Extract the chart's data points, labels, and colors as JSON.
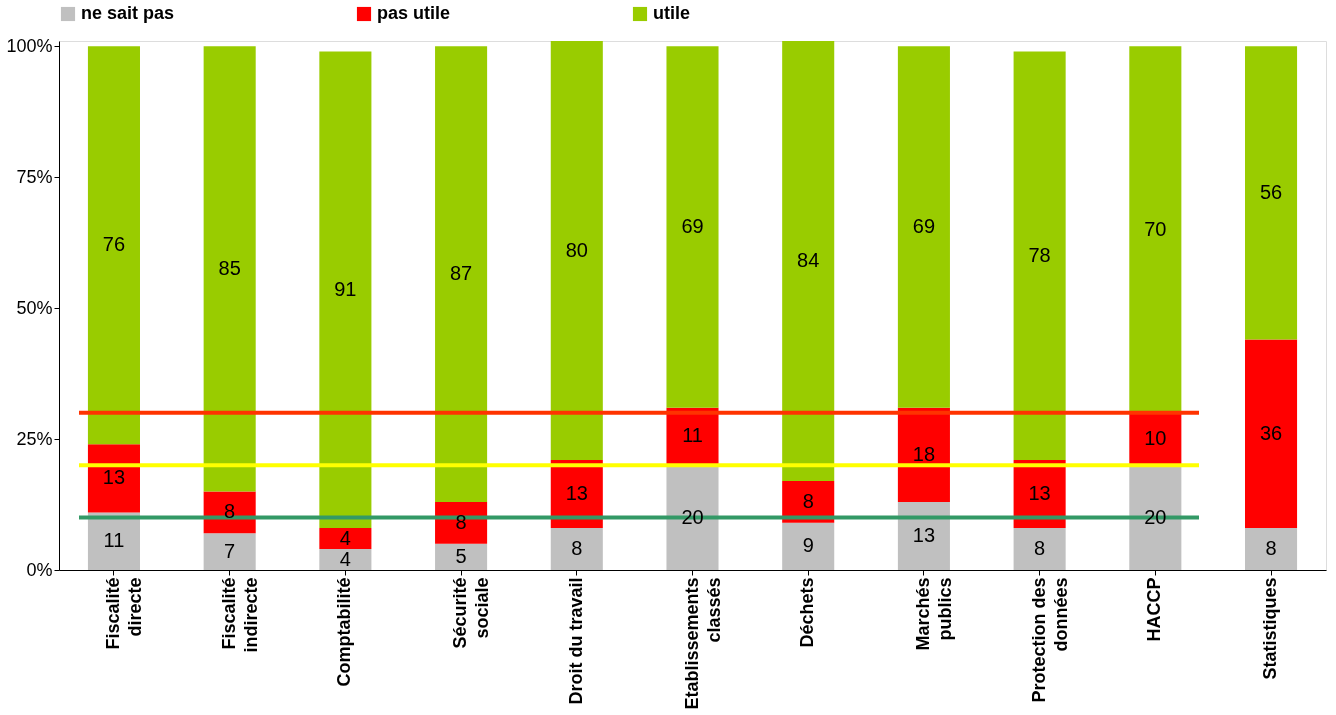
{
  "chart_data": {
    "type": "bar",
    "stacked": true,
    "data_labels": true,
    "legend": "top",
    "grid": false,
    "categories": [
      "Fiscalité\ndirecte",
      "Fiscalité\nindirecte",
      "Comptabilité",
      "Sécurité\nsociale",
      "Droit du travail",
      "Etablissements\nclassés",
      "Déchets",
      "Marchés\npublics",
      "Protection des\ndonnées",
      "HACCP",
      "Statistiques"
    ],
    "series": [
      {
        "name": "ne sait pas",
        "color": "#c0c0c0",
        "values": [
          11,
          7,
          4,
          5,
          8,
          20,
          9,
          13,
          8,
          20,
          8
        ]
      },
      {
        "name": "pas utile",
        "color": "#ff0000",
        "values": [
          13,
          8,
          4,
          8,
          13,
          11,
          8,
          18,
          13,
          10,
          36
        ]
      },
      {
        "name": "utile",
        "color": "#99cc00",
        "values": [
          76,
          85,
          91,
          87,
          80,
          69,
          84,
          69,
          78,
          70,
          56
        ]
      }
    ],
    "ylim": [
      0,
      101
    ],
    "yticks": [
      {
        "value": 0,
        "label": "0%"
      },
      {
        "value": 25,
        "label": "25%"
      },
      {
        "value": 50,
        "label": "50%"
      },
      {
        "value": 75,
        "label": "75%"
      },
      {
        "value": 100,
        "label": "100%"
      }
    ],
    "ref_lines": [
      {
        "axis": "y",
        "value": 30,
        "label": null,
        "color": "#ff3300"
      },
      {
        "axis": "y",
        "value": 20,
        "label": null,
        "color": "#ffff00"
      },
      {
        "axis": "y",
        "value": 10,
        "label": null,
        "color": "#339966"
      }
    ]
  }
}
